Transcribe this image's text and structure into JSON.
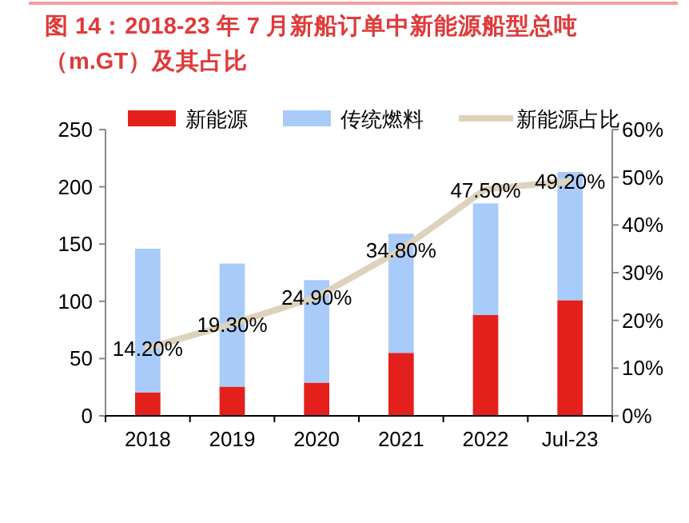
{
  "chart_data": {
    "type": "bar",
    "title": "图 14：2018-23 年 7 月新船订单中新能源船型总吨（m.GT）及其占比",
    "categories": [
      "2018",
      "2019",
      "2020",
      "2021",
      "2022",
      "Jul-23"
    ],
    "stacked": true,
    "series": [
      {
        "name": "新能源",
        "color": "#e3201b",
        "values": [
          20.5,
          25.5,
          29,
          55,
          88,
          101
        ]
      },
      {
        "name": "传统燃料",
        "color": "#a9cbfa",
        "values": [
          125.5,
          107.5,
          89.5,
          104,
          97.5,
          112
        ]
      },
      {
        "name": "新能源占比",
        "type": "line",
        "axis": "y2",
        "color": "#ddd3bd",
        "values": [
          14.2,
          19.3,
          24.9,
          34.8,
          47.5,
          49.2
        ],
        "value_labels": [
          "14.20%",
          "19.30%",
          "24.90%",
          "34.80%",
          "47.50%",
          "49.20%"
        ]
      }
    ],
    "ylim": [
      0,
      250
    ],
    "yticks": [
      0,
      50,
      100,
      150,
      200,
      250
    ],
    "y2lim": [
      0,
      60
    ],
    "y2ticks": [
      {
        "value": 0,
        "label": "0%"
      },
      {
        "value": 10,
        "label": "10%"
      },
      {
        "value": 20,
        "label": "20%"
      },
      {
        "value": 30,
        "label": "30%"
      },
      {
        "value": 40,
        "label": "40%"
      },
      {
        "value": 50,
        "label": "50%"
      },
      {
        "value": 60,
        "label": "60%"
      }
    ],
    "legend": "top",
    "grid": false
  }
}
